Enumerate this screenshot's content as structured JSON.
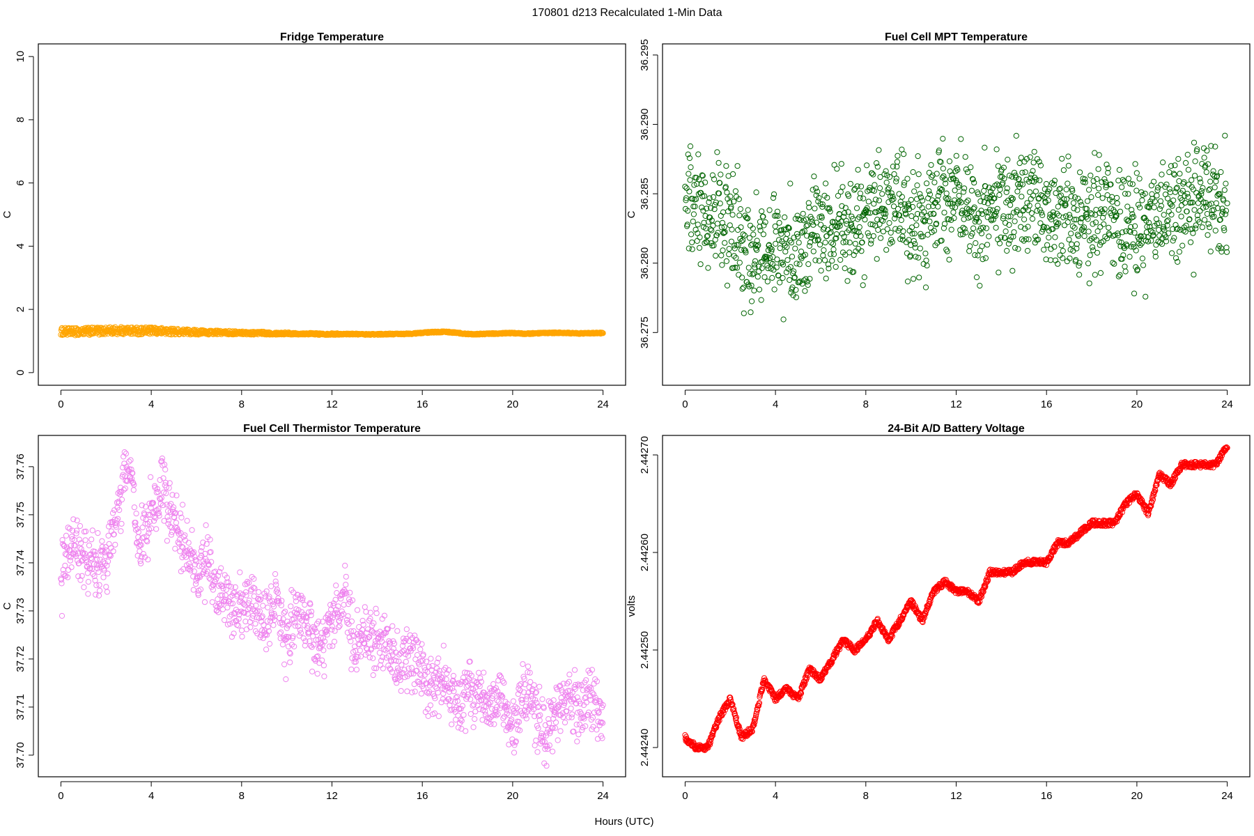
{
  "figure": {
    "suptitle": "170801   d213   Recalculated 1-Min Data",
    "common_xlabel": "Hours (UTC)"
  },
  "chart_data": [
    {
      "id": "fridge",
      "type": "scatter",
      "title": "Fridge Temperature",
      "xlabel": "",
      "ylabel": "C",
      "xlim": [
        -1,
        25
      ],
      "ylim": [
        -0.4,
        10.4
      ],
      "xticks": [
        0,
        4,
        8,
        12,
        16,
        20,
        24
      ],
      "xtick_labels": [
        "0",
        "4",
        "8",
        "12",
        "16",
        "20",
        "24"
      ],
      "yticks": [
        0,
        2,
        4,
        6,
        8,
        10
      ],
      "ytick_labels": [
        "0",
        "2",
        "4",
        "6",
        "8",
        "10"
      ],
      "color": "#FFA500",
      "marker": "open-circle",
      "x": [
        0,
        0.5,
        1,
        1.5,
        2,
        2.5,
        3,
        3.5,
        4,
        4.5,
        5,
        5.5,
        6,
        6.5,
        7,
        7.5,
        8,
        8.5,
        9,
        9.5,
        10,
        10.5,
        11,
        11.5,
        12,
        12.5,
        13,
        13.5,
        14,
        14.5,
        15,
        15.5,
        16,
        16.5,
        17,
        17.5,
        18,
        18.5,
        19,
        19.5,
        20,
        20.5,
        21,
        21.5,
        22,
        22.5,
        23,
        23.5,
        24
      ],
      "y_mean": [
        1.3,
        1.29,
        1.3,
        1.31,
        1.32,
        1.33,
        1.33,
        1.32,
        1.32,
        1.31,
        1.3,
        1.29,
        1.28,
        1.27,
        1.27,
        1.26,
        1.26,
        1.25,
        1.25,
        1.24,
        1.24,
        1.23,
        1.23,
        1.22,
        1.22,
        1.22,
        1.22,
        1.21,
        1.21,
        1.22,
        1.22,
        1.23,
        1.26,
        1.28,
        1.29,
        1.26,
        1.22,
        1.22,
        1.23,
        1.24,
        1.25,
        1.23,
        1.24,
        1.25,
        1.26,
        1.25,
        1.24,
        1.25,
        1.25
      ],
      "y_spread": [
        0.12,
        0.12,
        0.12,
        0.12,
        0.12,
        0.12,
        0.12,
        0.12,
        0.11,
        0.11,
        0.1,
        0.09,
        0.08,
        0.07,
        0.06,
        0.06,
        0.05,
        0.05,
        0.05,
        0.04,
        0.04,
        0.03,
        0.03,
        0.03,
        0.03,
        0.02,
        0.02,
        0.02,
        0.02,
        0.02,
        0.02,
        0.02,
        0.02,
        0.02,
        0.02,
        0.02,
        0.02,
        0.02,
        0.02,
        0.02,
        0.02,
        0.02,
        0.02,
        0.02,
        0.02,
        0.02,
        0.02,
        0.02,
        0.02
      ]
    },
    {
      "id": "mpt",
      "type": "scatter",
      "title": "Fuel Cell MPT Temperature",
      "xlabel": "",
      "ylabel": "C",
      "xlim": [
        -1,
        25
      ],
      "ylim": [
        36.2712,
        36.2958
      ],
      "xticks": [
        0,
        4,
        8,
        12,
        16,
        20,
        24
      ],
      "xtick_labels": [
        "0",
        "4",
        "8",
        "12",
        "16",
        "20",
        "24"
      ],
      "yticks": [
        36.275,
        36.28,
        36.285,
        36.29,
        36.295
      ],
      "ytick_labels": [
        "36.275",
        "36.280",
        "36.285",
        "36.290",
        "36.295"
      ],
      "color": "#006400",
      "marker": "open-circle",
      "x": [
        0,
        0.5,
        1,
        1.5,
        2,
        2.5,
        3,
        3.5,
        4,
        4.5,
        5,
        5.5,
        6,
        6.5,
        7,
        7.5,
        8,
        8.5,
        9,
        9.5,
        10,
        10.5,
        11,
        11.5,
        12,
        12.5,
        13,
        13.5,
        14,
        14.5,
        15,
        15.5,
        16,
        16.5,
        17,
        17.5,
        18,
        18.5,
        19,
        19.5,
        20,
        20.5,
        21,
        21.5,
        22,
        22.5,
        23,
        23.5,
        24
      ],
      "y_mean": [
        36.284,
        36.2835,
        36.283,
        36.2835,
        36.283,
        36.281,
        36.28,
        36.281,
        36.2815,
        36.281,
        36.2805,
        36.2815,
        36.283,
        36.2825,
        36.2825,
        36.283,
        36.283,
        36.284,
        36.2845,
        36.2835,
        36.2825,
        36.283,
        36.2845,
        36.2845,
        36.285,
        36.2845,
        36.2835,
        36.284,
        36.2845,
        36.2845,
        36.285,
        36.2845,
        36.284,
        36.2835,
        36.2835,
        36.283,
        36.2835,
        36.284,
        36.2835,
        36.2835,
        36.2825,
        36.283,
        36.283,
        36.2835,
        36.284,
        36.2845,
        36.2845,
        36.285,
        36.2845
      ],
      "y_spread": [
        0.0025,
        0.0025,
        0.0025,
        0.0025,
        0.0025,
        0.0025,
        0.0025,
        0.0025,
        0.0025,
        0.0025,
        0.0025,
        0.0025,
        0.0025,
        0.0025,
        0.0025,
        0.0025,
        0.0025,
        0.0025,
        0.0025,
        0.0025,
        0.0025,
        0.0025,
        0.0025,
        0.0025,
        0.0025,
        0.0025,
        0.0025,
        0.0025,
        0.0025,
        0.0025,
        0.0025,
        0.0025,
        0.0025,
        0.0025,
        0.0025,
        0.0025,
        0.0025,
        0.0025,
        0.0025,
        0.0025,
        0.0025,
        0.0025,
        0.0025,
        0.0025,
        0.0025,
        0.0025,
        0.0025,
        0.0025,
        0.0025
      ]
    },
    {
      "id": "thermistor",
      "type": "scatter",
      "title": "Fuel Cell Thermistor Temperature",
      "xlabel": "",
      "ylabel": "C",
      "xlim": [
        -1,
        25
      ],
      "ylim": [
        37.6955,
        37.7665
      ],
      "xticks": [
        0,
        4,
        8,
        12,
        16,
        20,
        24
      ],
      "xtick_labels": [
        "0",
        "4",
        "8",
        "12",
        "16",
        "20",
        "24"
      ],
      "yticks": [
        37.7,
        37.71,
        37.72,
        37.73,
        37.74,
        37.75,
        37.76
      ],
      "ytick_labels": [
        "37.70",
        "37.71",
        "37.72",
        "37.73",
        "37.74",
        "37.75",
        "37.76"
      ],
      "color": "#EE82EE",
      "marker": "open-circle",
      "x": [
        0,
        0.5,
        1,
        1.5,
        2,
        2.5,
        3,
        3.5,
        4,
        4.5,
        5,
        5.5,
        6,
        6.5,
        7,
        7.5,
        8,
        8.5,
        9,
        9.5,
        10,
        10.5,
        11,
        11.5,
        12,
        12.5,
        13,
        13.5,
        14,
        14.5,
        15,
        15.5,
        16,
        16.5,
        17,
        17.5,
        18,
        18.5,
        19,
        19.5,
        20,
        20.5,
        21,
        21.5,
        22,
        22.5,
        23,
        23.5,
        24
      ],
      "y_mean": [
        37.736,
        37.745,
        37.742,
        37.739,
        37.741,
        37.75,
        37.761,
        37.743,
        37.749,
        37.755,
        37.749,
        37.743,
        37.738,
        37.74,
        37.734,
        37.731,
        37.73,
        37.731,
        37.727,
        37.733,
        37.723,
        37.731,
        37.726,
        37.721,
        37.728,
        37.734,
        37.722,
        37.726,
        37.724,
        37.722,
        37.718,
        37.72,
        37.716,
        37.714,
        37.716,
        37.712,
        37.713,
        37.713,
        37.71,
        37.714,
        37.705,
        37.713,
        37.71,
        37.703,
        37.71,
        37.712,
        37.71,
        37.713,
        37.707
      ],
      "y_spread": [
        0.004,
        0.004,
        0.004,
        0.004,
        0.004,
        0.004,
        0.004,
        0.004,
        0.004,
        0.004,
        0.004,
        0.004,
        0.004,
        0.004,
        0.004,
        0.004,
        0.004,
        0.004,
        0.004,
        0.004,
        0.004,
        0.004,
        0.004,
        0.004,
        0.004,
        0.004,
        0.004,
        0.004,
        0.004,
        0.004,
        0.004,
        0.004,
        0.004,
        0.004,
        0.004,
        0.004,
        0.004,
        0.004,
        0.004,
        0.004,
        0.004,
        0.004,
        0.004,
        0.004,
        0.004,
        0.004,
        0.004,
        0.004,
        0.004
      ]
    },
    {
      "id": "battery",
      "type": "scatter",
      "title": "24-Bit A/D Battery Voltage",
      "xlabel": "",
      "ylabel": "volts",
      "xlim": [
        -1,
        25
      ],
      "ylim": [
        2.44237,
        2.44272
      ],
      "xticks": [
        0,
        4,
        8,
        12,
        16,
        20,
        24
      ],
      "xtick_labels": [
        "0",
        "4",
        "8",
        "12",
        "16",
        "20",
        "24"
      ],
      "yticks": [
        2.4424,
        2.4425,
        2.4426,
        2.4427
      ],
      "ytick_labels": [
        "2.44240",
        "2.44250",
        "2.44260",
        "2.44270"
      ],
      "color": "#FF0000",
      "marker": "open-circle",
      "x": [
        0,
        0.5,
        1,
        1.5,
        2,
        2.5,
        3,
        3.5,
        4,
        4.5,
        5,
        5.5,
        6,
        6.5,
        7,
        7.5,
        8,
        8.5,
        9,
        9.5,
        10,
        10.5,
        11,
        11.5,
        12,
        12.5,
        13,
        13.5,
        14,
        14.5,
        15,
        15.5,
        16,
        16.5,
        17,
        17.5,
        18,
        18.5,
        19,
        19.5,
        20,
        20.5,
        21,
        21.5,
        22,
        22.5,
        23,
        23.5,
        24
      ],
      "y_mean": [
        2.44241,
        2.4424,
        2.4424,
        2.44243,
        2.44245,
        2.44241,
        2.44242,
        2.44247,
        2.44245,
        2.44246,
        2.44245,
        2.44248,
        2.44247,
        2.44249,
        2.44251,
        2.4425,
        2.44251,
        2.44253,
        2.44251,
        2.44253,
        2.44255,
        2.44253,
        2.44256,
        2.44257,
        2.44256,
        2.44256,
        2.44255,
        2.44258,
        2.44258,
        2.44258,
        2.44259,
        2.44259,
        2.44259,
        2.44261,
        2.44261,
        2.44262,
        2.44263,
        2.44263,
        2.44263,
        2.44265,
        2.44266,
        2.44264,
        2.44268,
        2.44267,
        2.44269,
        2.44269,
        2.44269,
        2.44269,
        2.44271
      ],
      "y_spread": [
        3e-06,
        3e-06,
        3e-06,
        3e-06,
        3e-06,
        3e-06,
        3e-06,
        3e-06,
        3e-06,
        3e-06,
        3e-06,
        3e-06,
        3e-06,
        3e-06,
        3e-06,
        3e-06,
        3e-06,
        3e-06,
        3e-06,
        3e-06,
        3e-06,
        3e-06,
        3e-06,
        3e-06,
        3e-06,
        3e-06,
        3e-06,
        3e-06,
        3e-06,
        3e-06,
        3e-06,
        3e-06,
        3e-06,
        3e-06,
        3e-06,
        3e-06,
        3e-06,
        3e-06,
        3e-06,
        3e-06,
        3e-06,
        3e-06,
        3e-06,
        3e-06,
        3e-06,
        3e-06,
        3e-06,
        3e-06,
        3e-06
      ]
    }
  ]
}
